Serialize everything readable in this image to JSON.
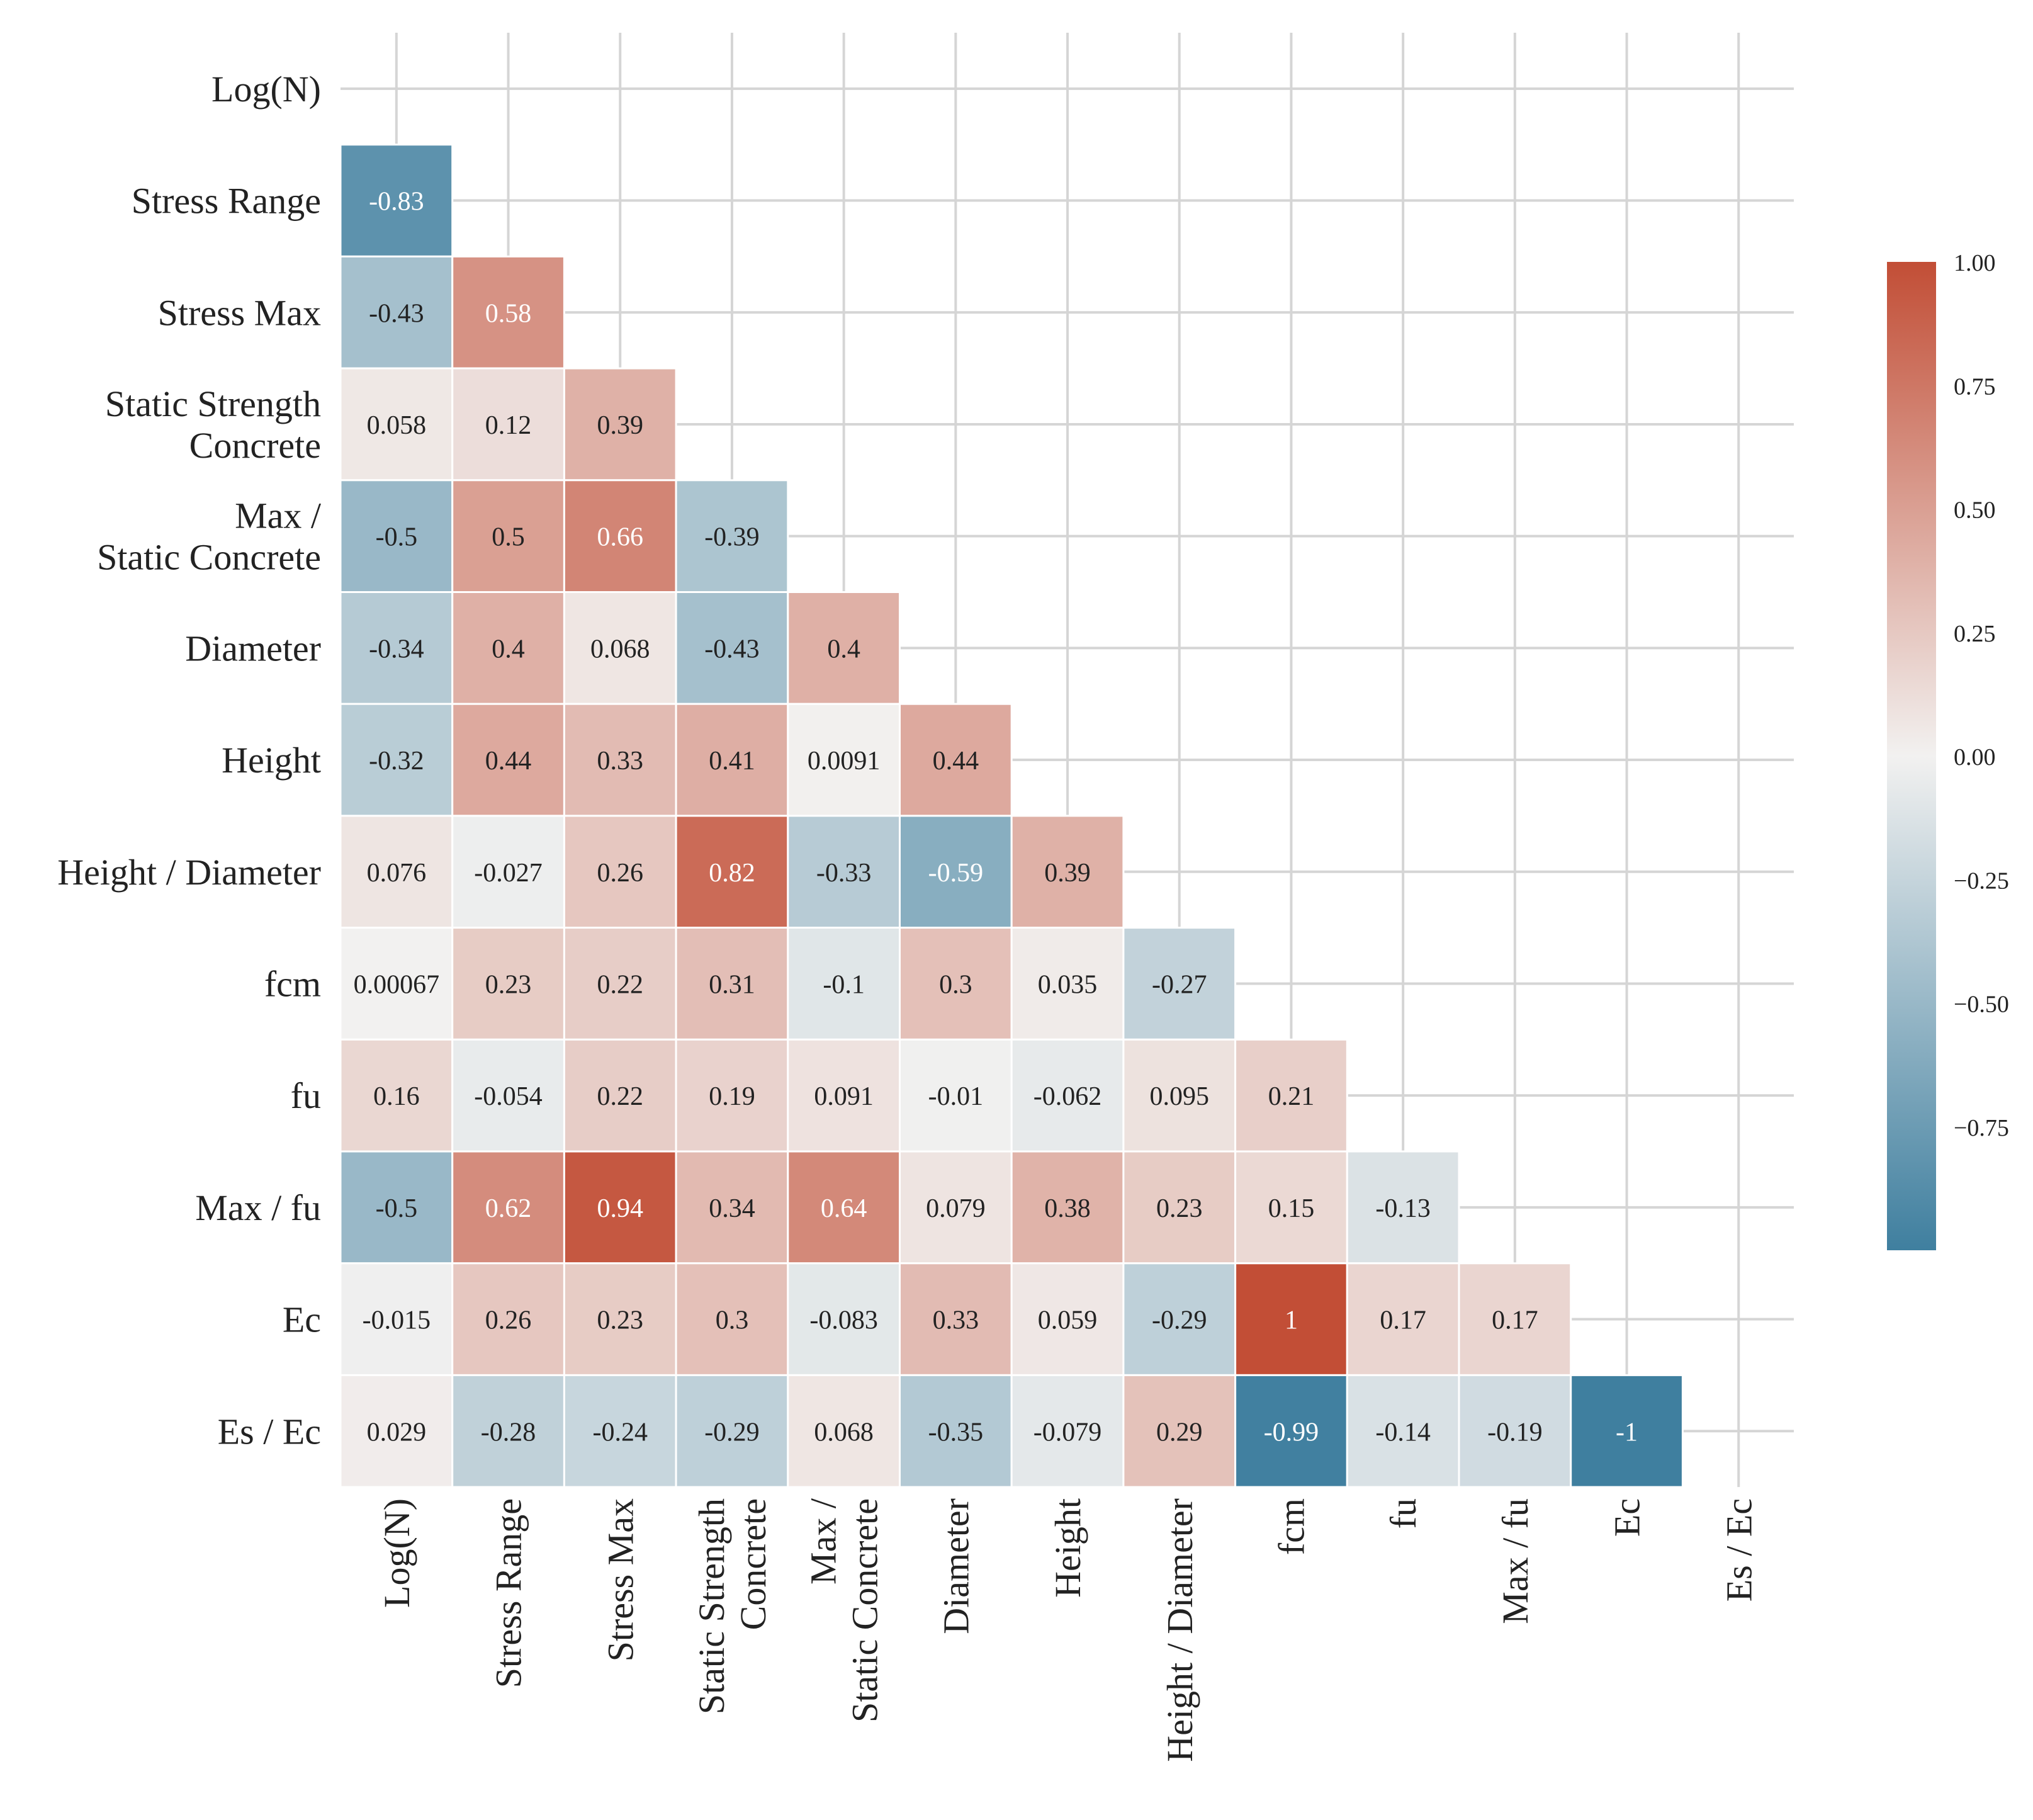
{
  "chart_data": {
    "type": "heatmap",
    "variables": [
      [
        "Log(N)"
      ],
      [
        "Stress Range"
      ],
      [
        "Stress Max"
      ],
      [
        "Static Strength",
        "Concrete"
      ],
      [
        "Max /",
        "Static Concrete"
      ],
      [
        "Diameter"
      ],
      [
        "Height"
      ],
      [
        "Height / Diameter"
      ],
      [
        "fcm"
      ],
      [
        "fu"
      ],
      [
        "Max / fu"
      ],
      [
        "Ec"
      ],
      [
        "Es / Ec"
      ]
    ],
    "lower_triangle": [
      [],
      [
        "-0.83"
      ],
      [
        "-0.43",
        "0.58"
      ],
      [
        "0.058",
        "0.12",
        "0.39"
      ],
      [
        "-0.5",
        "0.5",
        "0.66",
        "-0.39"
      ],
      [
        "-0.34",
        "0.4",
        "0.068",
        "-0.43",
        "0.4"
      ],
      [
        "-0.32",
        "0.44",
        "0.33",
        "0.41",
        "0.0091",
        "0.44"
      ],
      [
        "0.076",
        "-0.027",
        "0.26",
        "0.82",
        "-0.33",
        "-0.59",
        "0.39"
      ],
      [
        "0.00067",
        "0.23",
        "0.22",
        "0.31",
        "-0.1",
        "0.3",
        "0.035",
        "-0.27"
      ],
      [
        "0.16",
        "-0.054",
        "0.22",
        "0.19",
        "0.091",
        "-0.01",
        "-0.062",
        "0.095",
        "0.21"
      ],
      [
        "-0.5",
        "0.62",
        "0.94",
        "0.34",
        "0.64",
        "0.079",
        "0.38",
        "0.23",
        "0.15",
        "-0.13"
      ],
      [
        "-0.015",
        "0.26",
        "0.23",
        "0.3",
        "-0.083",
        "0.33",
        "0.059",
        "-0.29",
        "1",
        "0.17",
        "0.17"
      ],
      [
        "0.029",
        "-0.28",
        "-0.24",
        "-0.29",
        "0.068",
        "-0.35",
        "-0.079",
        "0.29",
        "-0.99",
        "-0.14",
        "-0.19",
        "-1"
      ]
    ],
    "colorbar": {
      "range": [
        -1,
        1
      ],
      "ticks": [
        "1.00",
        "0.75",
        "0.50",
        "0.25",
        "0.00",
        "−0.25",
        "−0.50",
        "−0.75"
      ],
      "tick_values": [
        1,
        0.75,
        0.5,
        0.25,
        0,
        -0.25,
        -0.5,
        -0.75
      ],
      "colors": {
        "negative": "#3f7f9f",
        "neutral": "#f2f1f0",
        "positive": "#c24e36"
      }
    },
    "grid": true,
    "mask": "upper-triangle"
  }
}
